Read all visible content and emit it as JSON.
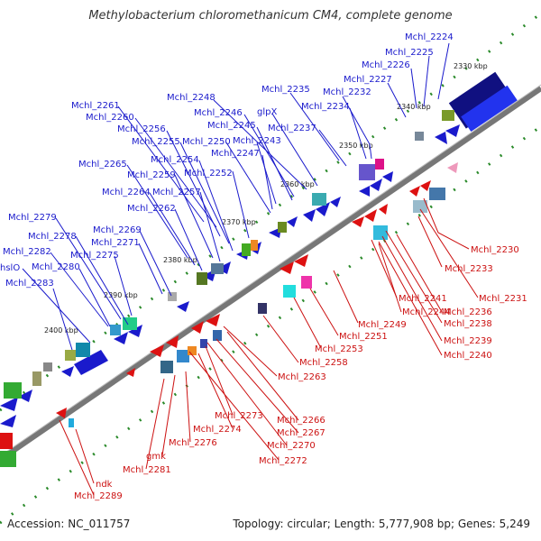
{
  "title": "Methylobacterium chloromethanicum CM4, complete genome",
  "footer": {
    "accession": "Accession: NC_011757",
    "summary": "Topology: circular; Length: 5,777,908 bp; Genes: 5,249"
  },
  "ticks": [
    "2330 kbp",
    "2340 kbp",
    "2350 kbp",
    "2360 kbp",
    "2370 kbp",
    "2380 kbp",
    "2390 kbp",
    "2400 kbp"
  ],
  "forward_labels": [
    "Mchl_2224",
    "Mchl_2225",
    "Mchl_2226",
    "Mchl_2227",
    "Mchl_2232",
    "Mchl_2235",
    "Mchl_2234",
    "glpX",
    "Mchl_2237",
    "Mchl_2248",
    "Mchl_2246",
    "Mchl_2245",
    "Mchl_2243",
    "Mchl_2247",
    "Mchl_2250",
    "Mchl_2261",
    "Mchl_2260",
    "Mchl_2256",
    "Mchl_2255",
    "Mchl_2254",
    "Mchl_2252",
    "Mchl_2265",
    "Mchl_2259",
    "Mchl_2264",
    "Mchl_2257",
    "Mchl_2262",
    "Mchl_2279",
    "Mchl_2278",
    "Mchl_2269",
    "Mchl_2271",
    "Mchl_2282",
    "Mchl_2275",
    "hslO",
    "Mchl_2280",
    "Mchl_2283"
  ],
  "reverse_labels": [
    "Mchl_2230",
    "Mchl_2233",
    "Mchl_2231",
    "Mchl_2241",
    "Mchl_2236",
    "Mchl_2244",
    "Mchl_2238",
    "Mchl_2249",
    "Mchl_2239",
    "Mchl_2251",
    "Mchl_2240",
    "Mchl_2253",
    "Mchl_2258",
    "Mchl_2263",
    "Mchl_2266",
    "Mchl_2273",
    "Mchl_2267",
    "Mchl_2274",
    "Mchl_2270",
    "Mchl_2276",
    "Mchl_2272",
    "gmk",
    "Mchl_2281",
    "ndk",
    "Mchl_2289"
  ],
  "colors": {
    "forward": "#1a1acc",
    "reverse": "#dd1111",
    "backbone": "#888888",
    "gc_ticks": "#2a8a2a"
  }
}
